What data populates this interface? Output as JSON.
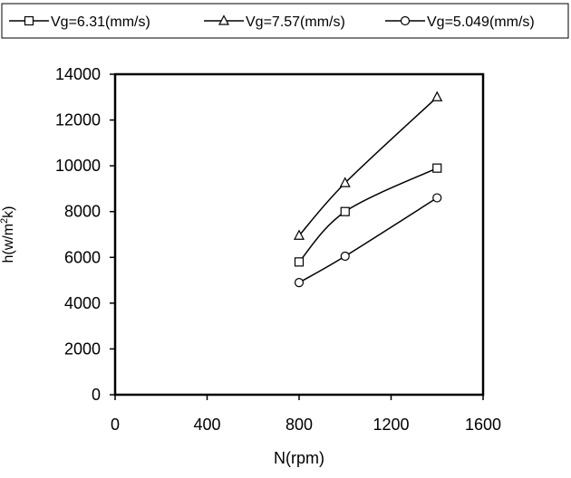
{
  "chart_data": {
    "type": "line",
    "xlabel": "N(rpm)",
    "ylabel_main": "h(w/m",
    "ylabel_sup": "2",
    "ylabel_tail": "k)",
    "xlim": [
      0,
      1600
    ],
    "ylim": [
      0,
      14000
    ],
    "x_ticks": [
      0,
      400,
      800,
      1200,
      1600
    ],
    "y_ticks": [
      0,
      2000,
      4000,
      6000,
      8000,
      10000,
      12000,
      14000
    ],
    "grid": false,
    "legend_position": "top",
    "x": [
      800,
      1000,
      1400
    ],
    "series": [
      {
        "name": "Vg=6.31(mm/s)",
        "marker": "square",
        "values": [
          5800,
          8000,
          9900
        ]
      },
      {
        "name": "Vg=7.57(mm/s)",
        "marker": "triangle",
        "values": [
          6950,
          9250,
          13000
        ]
      },
      {
        "name": "Vg=5.049(mm/s)",
        "marker": "circle",
        "values": [
          4900,
          6050,
          8600
        ]
      }
    ]
  }
}
